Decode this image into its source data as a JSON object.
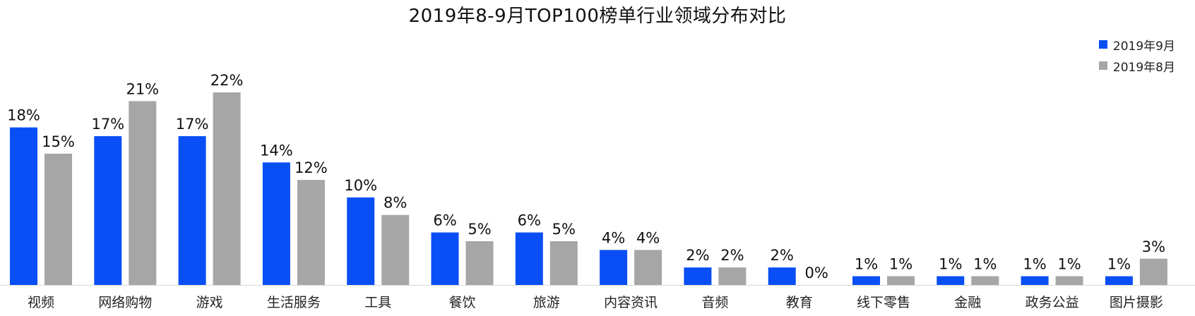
{
  "chart_data": {
    "type": "bar",
    "title": "2019年8-9月TOP100榜单行业领域分布对比",
    "categories": [
      "视频",
      "网络购物",
      "游戏",
      "生活服务",
      "工具",
      "餐饮",
      "旅游",
      "内容资讯",
      "音频",
      "教育",
      "线下零售",
      "金融",
      "政务公益",
      "图片摄影"
    ],
    "series": [
      {
        "name": "2019年9月",
        "color": "#0a4ff5",
        "values": [
          18,
          17,
          17,
          14,
          10,
          6,
          6,
          4,
          2,
          2,
          1,
          1,
          1,
          1
        ]
      },
      {
        "name": "2019年8月",
        "color": "#a6a6a6",
        "values": [
          15,
          21,
          22,
          12,
          8,
          5,
          5,
          4,
          2,
          0,
          1,
          1,
          1,
          3
        ]
      }
    ],
    "value_suffix": "%",
    "ylim": [
      0,
      23
    ],
    "legend": "top-right",
    "grid": false
  }
}
